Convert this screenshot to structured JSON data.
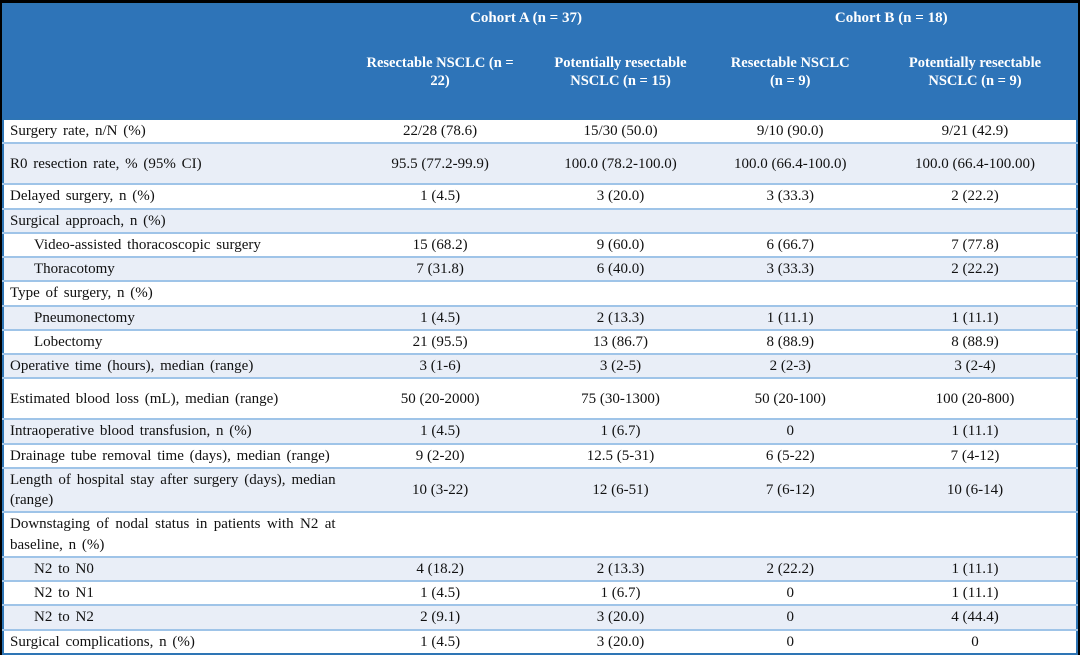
{
  "table": {
    "cohort_groups": [
      {
        "label": "Cohort A (n = 37)"
      },
      {
        "label": "Cohort B (n = 18)"
      }
    ],
    "column_headers": [
      "Resectable NSCLC (n = 22)",
      "Potentially resectable NSCLC (n = 15)",
      "Resectable NSCLC (n = 9)",
      "Potentially resectable NSCLC (n = 9)"
    ],
    "rows": [
      {
        "label": "Surgery rate, n/N (%)",
        "indent": false,
        "values": [
          "22/28 (78.6)",
          "15/30 (50.0)",
          "9/10 (90.0)",
          "9/21 (42.9)"
        ]
      },
      {
        "label": "R0 resection rate, % (95% CI)",
        "indent": false,
        "values": [
          "95.5 (77.2-99.9)",
          "100.0 (78.2-100.0)",
          "100.0 (66.4-100.0)",
          "100.0 (66.4-100.00)"
        ]
      },
      {
        "label": "Delayed surgery, n (%)",
        "indent": false,
        "values": [
          "1 (4.5)",
          "3 (20.0)",
          "3 (33.3)",
          "2 (22.2)"
        ]
      },
      {
        "label": "Surgical approach, n (%)",
        "indent": false,
        "values": [
          "",
          "",
          "",
          ""
        ]
      },
      {
        "label": "Video-assisted thoracoscopic surgery",
        "indent": true,
        "values": [
          "15 (68.2)",
          "9 (60.0)",
          "6 (66.7)",
          "7 (77.8)"
        ]
      },
      {
        "label": "Thoracotomy",
        "indent": true,
        "values": [
          "7 (31.8)",
          "6 (40.0)",
          "3 (33.3)",
          "2 (22.2)"
        ]
      },
      {
        "label": "Type of surgery, n (%)",
        "indent": false,
        "values": [
          "",
          "",
          "",
          ""
        ]
      },
      {
        "label": "Pneumonectomy",
        "indent": true,
        "values": [
          "1 (4.5)",
          "2 (13.3)",
          "1 (11.1)",
          "1 (11.1)"
        ]
      },
      {
        "label": "Lobectomy",
        "indent": true,
        "values": [
          "21 (95.5)",
          "13 (86.7)",
          "8 (88.9)",
          "8 (88.9)"
        ]
      },
      {
        "label": "Operative time (hours), median (range)",
        "indent": false,
        "values": [
          "3 (1-6)",
          "3 (2-5)",
          "2 (2-3)",
          "3 (2-4)"
        ]
      },
      {
        "label": "Estimated blood loss (mL), median (range)",
        "indent": false,
        "values": [
          "50 (20-2000)",
          "75 (30-1300)",
          "50 (20-100)",
          "100 (20-800)"
        ]
      },
      {
        "label": "Intraoperative blood transfusion, n (%)",
        "indent": false,
        "values": [
          "1 (4.5)",
          "1 (6.7)",
          "0",
          "1 (11.1)"
        ]
      },
      {
        "label": "Drainage tube removal time (days), median (range)",
        "indent": false,
        "values": [
          "9 (2-20)",
          "12.5 (5-31)",
          "6 (5-22)",
          "7 (4-12)"
        ]
      },
      {
        "label": "Length of hospital stay after surgery (days), median (range)",
        "indent": false,
        "values": [
          "10 (3-22)",
          "12 (6-51)",
          "7 (6-12)",
          "10 (6-14)"
        ]
      },
      {
        "label": "Downstaging of nodal status in patients with N2 at baseline, n (%)",
        "indent": false,
        "values": [
          "",
          "",
          "",
          ""
        ]
      },
      {
        "label": "N2 to N0",
        "indent": true,
        "values": [
          "4 (18.2)",
          "2 (13.3)",
          "2 (22.2)",
          "1 (11.1)"
        ]
      },
      {
        "label": "N2 to N1",
        "indent": true,
        "values": [
          "1 (4.5)",
          "1 (6.7)",
          "0",
          "1 (11.1)"
        ]
      },
      {
        "label": "N2 to N2",
        "indent": true,
        "values": [
          "2 (9.1)",
          "3 (20.0)",
          "0",
          "4 (44.4)"
        ]
      },
      {
        "label": "Surgical complications, n (%)",
        "indent": false,
        "values": [
          "1 (4.5)",
          "3 (20.0)",
          "0",
          "0"
        ]
      }
    ]
  },
  "colors": {
    "header_bg": "#2E74B8",
    "header_text": "#FFFFFF",
    "shaded_row_bg": "#E9EEF7",
    "row_separator": "#9FC4E8",
    "outer_border": "#2E75B5",
    "frame": "#000000"
  }
}
